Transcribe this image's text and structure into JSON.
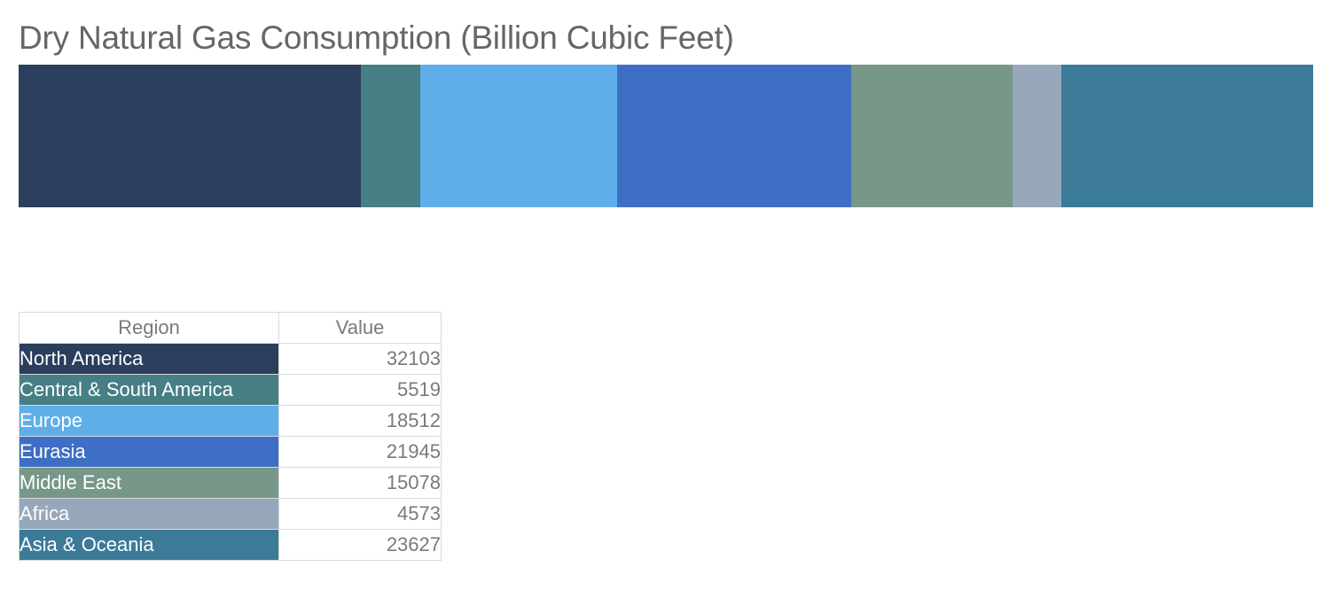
{
  "chart_data": {
    "type": "bar",
    "title": "Dry Natural Gas Consumption (Billion Cubic Feet)",
    "table_headers": {
      "region": "Region",
      "value": "Value"
    },
    "categories": [
      "North America",
      "Central & South America",
      "Europe",
      "Eurasia",
      "Middle East",
      "Africa",
      "Asia & Oceania"
    ],
    "values": [
      32103,
      5519,
      18512,
      21945,
      15078,
      4573,
      23627
    ],
    "colors": [
      "#2c3e5e",
      "#467f84",
      "#5faee9",
      "#3f6fc4",
      "#779889",
      "#98a8bb",
      "#3b7b98"
    ]
  }
}
